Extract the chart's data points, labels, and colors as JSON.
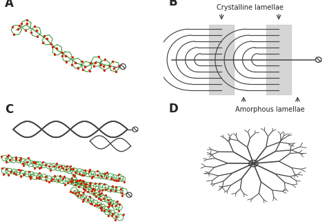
{
  "bg_color": "#ffffff",
  "label_color": "#222222",
  "panel_labels": [
    "A",
    "B",
    "C",
    "D"
  ],
  "panel_label_fontsize": 12,
  "line_color": "#444444",
  "green_color": "#2a8c2a",
  "red_color": "#cc2200",
  "gray_box_color": "#c8c8c8",
  "crystalline_label": "Crystalline lamellae",
  "amorphous_label": "Amorphous lamellae",
  "label_fontsize": 7.0
}
